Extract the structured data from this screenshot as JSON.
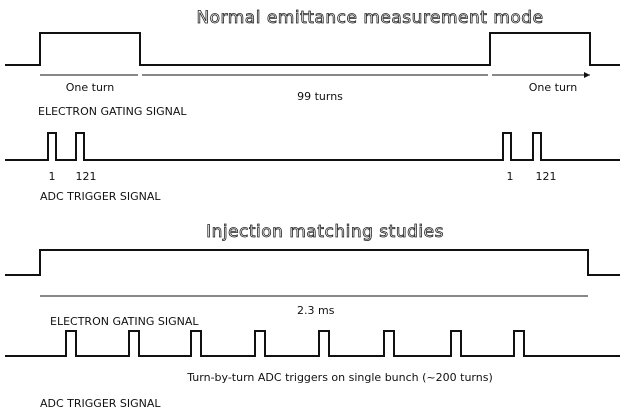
{
  "sections": [
    {
      "title": "Normal emittance measurement mode",
      "gating": {
        "label": "ELECTRON GATING SIGNAL",
        "annotations": [
          "One turn",
          "99 turns",
          "One turn"
        ]
      },
      "adc": {
        "label": "ADC TRIGGER SIGNAL",
        "pulse_labels": [
          "1",
          "121",
          "1",
          "121"
        ]
      }
    },
    {
      "title": "Injection matching studies",
      "gating": {
        "label": "ELECTRON GATING SIGNAL",
        "annotations": [
          "2.3 ms"
        ]
      },
      "adc": {
        "label": "ADC TRIGGER SIGNAL",
        "caption": "Turn-by-turn ADC triggers on single bunch (~200 turns)"
      }
    }
  ]
}
